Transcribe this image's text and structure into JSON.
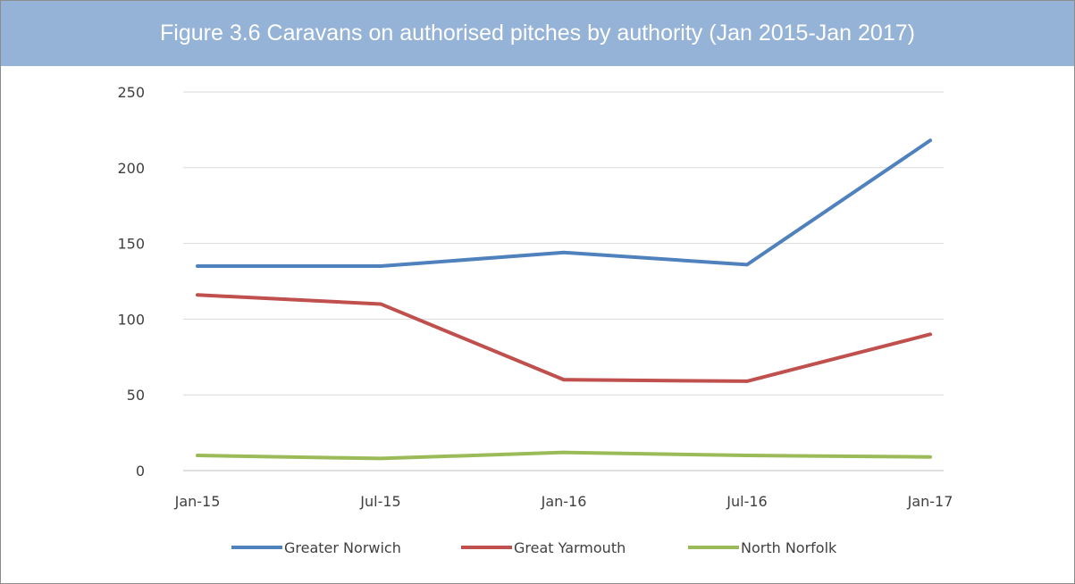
{
  "header": {
    "title": "Figure 3.6 Caravans on authorised pitches by authority (Jan 2015-Jan 2017)",
    "background_color": "#95b3d7",
    "text_color": "#ffffff"
  },
  "chart_data": {
    "type": "line",
    "title": "Figure 3.6 Caravans on authorised pitches by authority (Jan 2015-Jan 2017)",
    "xlabel": "",
    "ylabel": "",
    "categories": [
      "Jan-15",
      "Jul-15",
      "Jan-16",
      "Jul-16",
      "Jan-17"
    ],
    "ylim": [
      0,
      250
    ],
    "yticks": [
      0,
      50,
      100,
      150,
      200,
      250
    ],
    "grid": true,
    "legend_position": "bottom",
    "series": [
      {
        "name": "Greater Norwich",
        "color": "#4f81bd",
        "values": [
          135,
          135,
          144,
          136,
          218
        ]
      },
      {
        "name": "Great Yarmouth",
        "color": "#c0504d",
        "values": [
          116,
          110,
          60,
          59,
          90
        ]
      },
      {
        "name": "North Norfolk",
        "color": "#9bbb59",
        "values": [
          10,
          8,
          12,
          10,
          9
        ]
      }
    ]
  }
}
